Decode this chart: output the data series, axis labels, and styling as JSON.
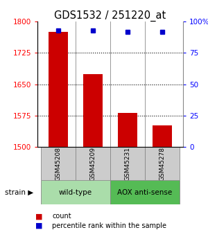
{
  "title": "GDS1532 / 251220_at",
  "samples": [
    "GSM45208",
    "GSM45209",
    "GSM45231",
    "GSM45278"
  ],
  "counts": [
    1775,
    1675,
    1582,
    1552
  ],
  "percentiles": [
    93,
    93,
    92,
    92
  ],
  "ylim_left": [
    1500,
    1800
  ],
  "ylim_right": [
    0,
    100
  ],
  "yticks_left": [
    1500,
    1575,
    1650,
    1725,
    1800
  ],
  "yticks_right": [
    0,
    25,
    50,
    75,
    100
  ],
  "ytick_labels_right": [
    "0",
    "25",
    "50",
    "75",
    "100%"
  ],
  "bar_color": "#cc0000",
  "dot_color": "#0000cc",
  "strain_labels": [
    "wild-type",
    "AOX anti-sense"
  ],
  "strain_color_light": "#aaddaa",
  "strain_color_dark": "#55bb55",
  "sample_box_color": "#cccccc",
  "bar_width": 0.55,
  "title_fontsize": 10.5
}
